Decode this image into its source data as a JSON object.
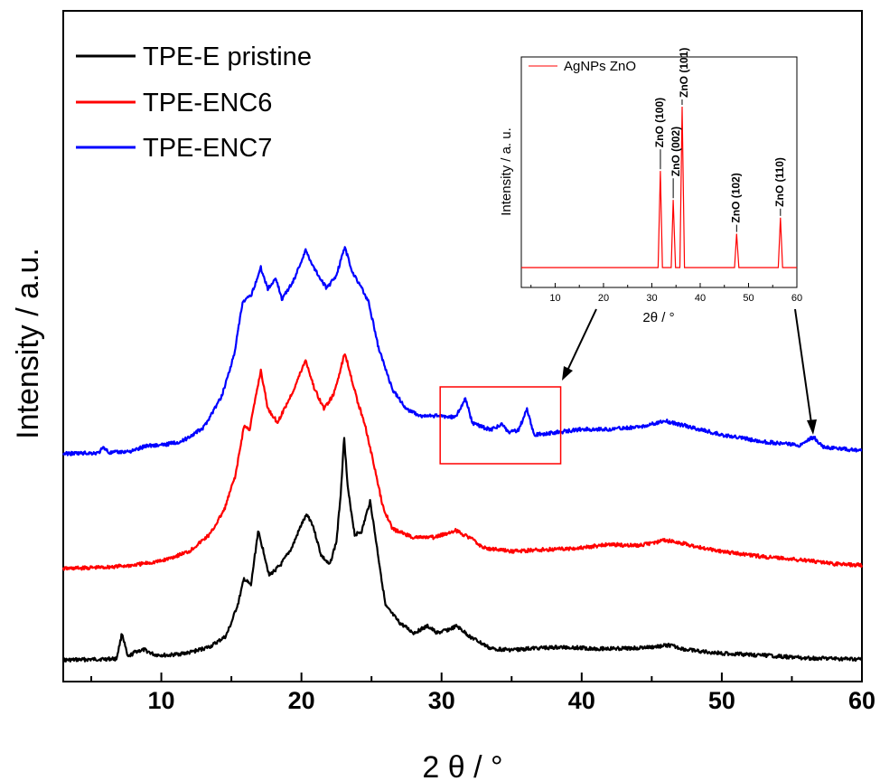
{
  "chart_data": [
    {
      "type": "line",
      "xlabel": "2 θ /   °",
      "ylabel": "Intensity / a.u.",
      "xlim": [
        3,
        60
      ],
      "xticks": [
        10,
        20,
        30,
        40,
        50,
        60
      ],
      "legend_position": "top-left",
      "grid": false,
      "y_units": "arbitrary (stacked, offset)",
      "series": [
        {
          "name": "TPE-E pristine",
          "color": "#000000",
          "points": [
            [
              3,
              0.05
            ],
            [
              5,
              0.06
            ],
            [
              6.8,
              0.07
            ],
            [
              7.2,
              0.45
            ],
            [
              7.6,
              0.09
            ],
            [
              8.2,
              0.18
            ],
            [
              8.8,
              0.2
            ],
            [
              9.5,
              0.13
            ],
            [
              10.5,
              0.12
            ],
            [
              12,
              0.16
            ],
            [
              13.5,
              0.25
            ],
            [
              14.6,
              0.4
            ],
            [
              15,
              0.6
            ],
            [
              15.5,
              0.9
            ],
            [
              15.9,
              1.25
            ],
            [
              16.4,
              1.15
            ],
            [
              16.9,
              1.95
            ],
            [
              17.3,
              1.65
            ],
            [
              17.7,
              1.3
            ],
            [
              18.5,
              1.45
            ],
            [
              19.3,
              1.7
            ],
            [
              20,
              2.05
            ],
            [
              20.4,
              2.2
            ],
            [
              20.8,
              2.05
            ],
            [
              21.4,
              1.6
            ],
            [
              22,
              1.45
            ],
            [
              22.5,
              1.8
            ],
            [
              22.8,
              2.5
            ],
            [
              23.05,
              3.35
            ],
            [
              23.3,
              2.6
            ],
            [
              23.8,
              1.9
            ],
            [
              24.3,
              1.95
            ],
            [
              24.9,
              2.4
            ],
            [
              25.4,
              1.7
            ],
            [
              26,
              0.85
            ],
            [
              27,
              0.6
            ],
            [
              28,
              0.45
            ],
            [
              29,
              0.55
            ],
            [
              29.7,
              0.45
            ],
            [
              30.5,
              0.5
            ],
            [
              31.1,
              0.55
            ],
            [
              32,
              0.4
            ],
            [
              33.5,
              0.22
            ],
            [
              35,
              0.2
            ],
            [
              37,
              0.23
            ],
            [
              39,
              0.24
            ],
            [
              41,
              0.22
            ],
            [
              43,
              0.22
            ],
            [
              45,
              0.24
            ],
            [
              46.2,
              0.27
            ],
            [
              47.5,
              0.2
            ],
            [
              50,
              0.15
            ],
            [
              53,
              0.12
            ],
            [
              56,
              0.08
            ],
            [
              60,
              0.06
            ]
          ]
        },
        {
          "name": "TPE-ENC6",
          "color": "#ff0000",
          "points": [
            [
              3,
              0.05
            ],
            [
              6,
              0.07
            ],
            [
              8,
              0.1
            ],
            [
              10,
              0.16
            ],
            [
              12,
              0.3
            ],
            [
              13.5,
              0.55
            ],
            [
              14.5,
              0.9
            ],
            [
              15.3,
              1.4
            ],
            [
              15.9,
              2.1
            ],
            [
              16.3,
              2.05
            ],
            [
              17.1,
              2.9
            ],
            [
              17.6,
              2.35
            ],
            [
              18.3,
              2.15
            ],
            [
              19.4,
              2.6
            ],
            [
              20.3,
              3.05
            ],
            [
              20.9,
              2.65
            ],
            [
              21.6,
              2.35
            ],
            [
              22.3,
              2.55
            ],
            [
              23.1,
              3.15
            ],
            [
              23.5,
              2.85
            ],
            [
              24,
              2.45
            ],
            [
              24.5,
              2.15
            ],
            [
              25,
              1.7
            ],
            [
              25.8,
              0.95
            ],
            [
              26.5,
              0.62
            ],
            [
              28,
              0.5
            ],
            [
              29.5,
              0.5
            ],
            [
              31,
              0.6
            ],
            [
              32,
              0.5
            ],
            [
              33,
              0.35
            ],
            [
              35,
              0.3
            ],
            [
              38,
              0.33
            ],
            [
              40,
              0.35
            ],
            [
              42,
              0.4
            ],
            [
              44,
              0.38
            ],
            [
              46,
              0.46
            ],
            [
              48,
              0.38
            ],
            [
              50,
              0.3
            ],
            [
              53,
              0.22
            ],
            [
              56,
              0.17
            ],
            [
              58,
              0.12
            ],
            [
              60,
              0.1
            ]
          ]
        },
        {
          "name": "TPE-ENC7",
          "color": "#0000ff",
          "points": [
            [
              3,
              0.08
            ],
            [
              5.5,
              0.09
            ],
            [
              5.9,
              0.17
            ],
            [
              6.3,
              0.09
            ],
            [
              8,
              0.12
            ],
            [
              9,
              0.2
            ],
            [
              10,
              0.2
            ],
            [
              11.5,
              0.26
            ],
            [
              13,
              0.45
            ],
            [
              14.3,
              0.9
            ],
            [
              15.2,
              1.5
            ],
            [
              15.8,
              2.25
            ],
            [
              16.4,
              2.35
            ],
            [
              17.1,
              2.75
            ],
            [
              17.6,
              2.45
            ],
            [
              18.2,
              2.6
            ],
            [
              18.6,
              2.3
            ],
            [
              19.4,
              2.55
            ],
            [
              20.3,
              3.0
            ],
            [
              20.9,
              2.75
            ],
            [
              21.8,
              2.45
            ],
            [
              22.5,
              2.65
            ],
            [
              23.1,
              3.05
            ],
            [
              23.6,
              2.7
            ],
            [
              24.2,
              2.5
            ],
            [
              24.8,
              2.25
            ],
            [
              25.5,
              1.6
            ],
            [
              26.5,
              1.0
            ],
            [
              27.5,
              0.72
            ],
            [
              28.5,
              0.62
            ],
            [
              30,
              0.62
            ],
            [
              31,
              0.6
            ],
            [
              31.7,
              0.88
            ],
            [
              32.2,
              0.52
            ],
            [
              33.5,
              0.42
            ],
            [
              34.3,
              0.5
            ],
            [
              34.8,
              0.38
            ],
            [
              35.5,
              0.42
            ],
            [
              36.1,
              0.72
            ],
            [
              36.6,
              0.35
            ],
            [
              38,
              0.38
            ],
            [
              40,
              0.43
            ],
            [
              42,
              0.43
            ],
            [
              44,
              0.46
            ],
            [
              46,
              0.55
            ],
            [
              48,
              0.45
            ],
            [
              50,
              0.35
            ],
            [
              53,
              0.25
            ],
            [
              55.5,
              0.2
            ],
            [
              56.3,
              0.3
            ],
            [
              56.6,
              0.31
            ],
            [
              57.2,
              0.18
            ],
            [
              59,
              0.14
            ],
            [
              60,
              0.12
            ]
          ]
        }
      ],
      "annotations": {
        "zoom_box": {
          "x_range": [
            29.9,
            38.5
          ]
        }
      }
    },
    {
      "type": "line",
      "xlabel": "2θ / °",
      "ylabel": "Intensity / a. u.",
      "xlim": [
        3,
        60
      ],
      "xticks": [
        10,
        20,
        30,
        40,
        50,
        60
      ],
      "legend_position": "top-left",
      "grid": false,
      "series": [
        {
          "name": "AgNPs ZnO",
          "color": "#ff0000",
          "points": [
            [
              3,
              0
            ],
            [
              31.3,
              0
            ],
            [
              31.77,
              0.6
            ],
            [
              32.2,
              0
            ],
            [
              34.0,
              0
            ],
            [
              34.42,
              0.42
            ],
            [
              34.9,
              0
            ],
            [
              35.8,
              0
            ],
            [
              36.26,
              1.0
            ],
            [
              36.75,
              0
            ],
            [
              47.1,
              0
            ],
            [
              47.54,
              0.21
            ],
            [
              48.0,
              0
            ],
            [
              56.15,
              0
            ],
            [
              56.6,
              0.31
            ],
            [
              57.05,
              0
            ],
            [
              60,
              0
            ]
          ]
        }
      ],
      "peak_labels": [
        {
          "text": "ZnO (100)",
          "x": 31.77
        },
        {
          "text": "ZnO (002)",
          "x": 34.42
        },
        {
          "text": "ZnO (101)",
          "x": 36.26
        },
        {
          "text": "ZnO (102)",
          "x": 47.54
        },
        {
          "text": "ZnO (110)",
          "x": 56.6
        }
      ]
    }
  ]
}
